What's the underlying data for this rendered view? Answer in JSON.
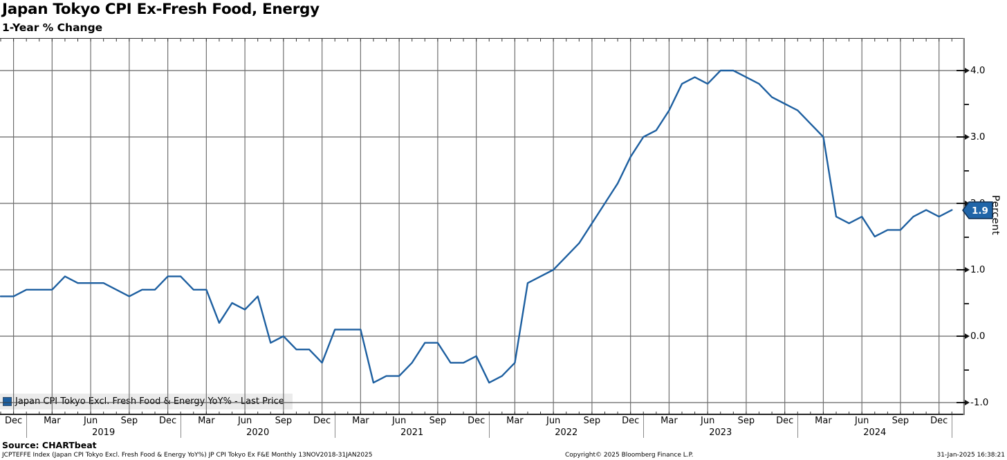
{
  "header": {
    "title": "Japan Tokyo CPI Ex-Fresh Food, Energy",
    "subtitle": "1-Year % Change"
  },
  "legend": {
    "label": "Japan CPI Tokyo Excl. Fresh Food & Energy YoY% - Last Price",
    "marker_color": "#1d5fa0"
  },
  "y_axis": {
    "label": "Percent",
    "tick_labels": [
      "4.0",
      "3.0",
      "2.0",
      "1.0",
      "0.0",
      "-1.0"
    ],
    "tick_values": [
      4.0,
      3.0,
      2.0,
      1.0,
      0.0,
      -1.0
    ],
    "minor_tick_values": [
      3.5,
      2.5,
      1.5,
      0.5,
      -0.5
    ]
  },
  "x_axis": {
    "quarter_labels": [
      "Dec",
      "Mar",
      "Jun",
      "Sep",
      "Dec",
      "Mar",
      "Jun",
      "Sep",
      "Dec",
      "Mar",
      "Jun",
      "Sep",
      "Dec",
      "Mar",
      "Jun",
      "Sep",
      "Dec",
      "Mar",
      "Jun",
      "Sep",
      "Dec",
      "Mar",
      "Jun",
      "Sep",
      "Dec"
    ],
    "year_labels": [
      "2019",
      "2020",
      "2021",
      "2022",
      "2023",
      "2024"
    ]
  },
  "last_price": {
    "value": "1.9",
    "fill_color": "#2065a8",
    "border_color": "#0d2c4f"
  },
  "footer": {
    "source": "Source: CHARTbeat",
    "description": "JCPTEFFE Index (Japan CPI Tokyo Excl. Fresh Food & Energy YoY%) JP CPI Tokyo Ex F&E  Monthly 13NOV2018-31JAN2025",
    "copyright": "Copyright© 2025 Bloomberg Finance L.P.",
    "timestamp": "31-Jan-2025 16:38:21"
  },
  "chart_data": {
    "type": "line",
    "title": "Japan Tokyo CPI Ex-Fresh Food, Energy",
    "subtitle": "1-Year % Change",
    "ylabel": "Percent",
    "ylim": [
      -1.2,
      4.5
    ],
    "yticks": [
      -1.0,
      0.0,
      1.0,
      2.0,
      3.0,
      4.0
    ],
    "grid": true,
    "legend_position": "bottom-left",
    "frequency": "monthly",
    "x_start": "2018-11",
    "x_end": "2025-01",
    "last_price": 1.9,
    "series": [
      {
        "name": "Japan CPI Tokyo Excl. Fresh Food & Energy YoY% - Last Price",
        "color": "#1d5fa0",
        "values": [
          0.6,
          0.6,
          0.7,
          0.7,
          0.7,
          0.9,
          0.8,
          0.8,
          0.8,
          0.7,
          0.6,
          0.7,
          0.7,
          0.9,
          0.9,
          0.7,
          0.7,
          0.2,
          0.5,
          0.4,
          0.6,
          -0.1,
          0.0,
          -0.2,
          -0.2,
          -0.4,
          0.1,
          0.1,
          0.1,
          -0.7,
          -0.6,
          -0.6,
          -0.4,
          -0.1,
          -0.1,
          -0.4,
          -0.4,
          -0.3,
          -0.7,
          -0.6,
          -0.4,
          0.8,
          0.9,
          1.0,
          1.2,
          1.4,
          1.7,
          2.0,
          2.3,
          2.7,
          3.0,
          3.1,
          3.4,
          3.8,
          3.9,
          3.8,
          4.0,
          4.0,
          3.9,
          3.8,
          3.6,
          3.5,
          3.4,
          3.2,
          3.0,
          1.8,
          1.7,
          1.8,
          1.5,
          1.6,
          1.6,
          1.8,
          1.9,
          1.8,
          1.9
        ]
      }
    ]
  }
}
